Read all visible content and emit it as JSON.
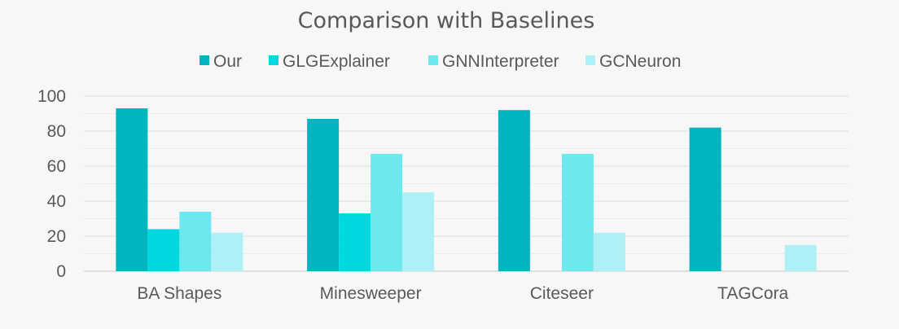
{
  "chart_data": {
    "type": "bar",
    "title": "Comparison with Baselines",
    "xlabel": "",
    "ylabel": "",
    "categories": [
      "BA Shapes",
      "Minesweeper",
      "Citeseer",
      "TAGCora"
    ],
    "series": [
      {
        "name": "Our",
        "color": "#00b5c0",
        "values": [
          93,
          87,
          92,
          82
        ]
      },
      {
        "name": "GLGExplainer",
        "color": "#00d8e0",
        "values": [
          24,
          33,
          0,
          0
        ]
      },
      {
        "name": "GNNInterpreter",
        "color": "#6de8ef",
        "values": [
          34,
          67,
          67,
          0
        ]
      },
      {
        "name": "GCNeuron",
        "color": "#aef0f5",
        "values": [
          22,
          45,
          22,
          15
        ]
      }
    ],
    "ylim": [
      0,
      100
    ],
    "yticks": [
      0,
      20,
      40,
      60,
      80,
      100
    ],
    "grid": true,
    "legend_position": "top-center"
  }
}
